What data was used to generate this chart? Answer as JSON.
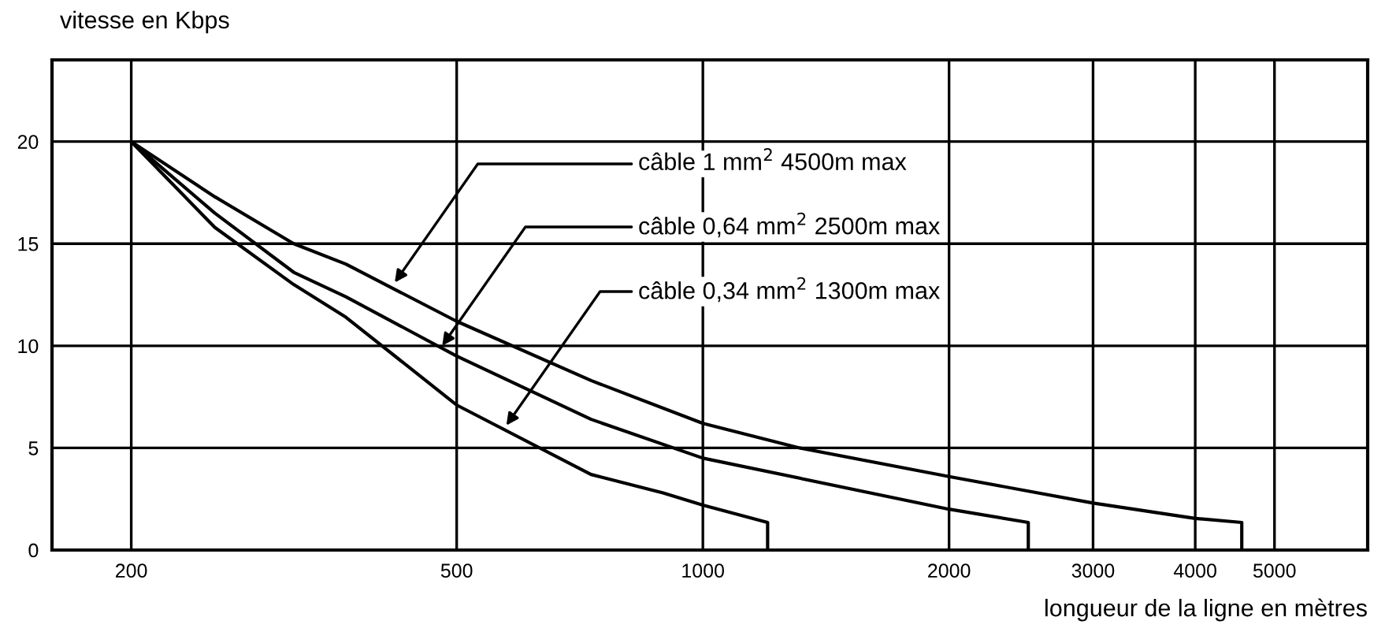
{
  "chart_data": {
    "type": "line",
    "xlabel": "longueur de la ligne en mètres",
    "ylabel": "vitesse en Kbps",
    "log": "x",
    "xlim": [
      160,
      6500
    ],
    "xticks": [
      200,
      500,
      1000,
      2000,
      3000,
      4000,
      5000
    ],
    "ylim": [
      0,
      24
    ],
    "yticks": [
      0,
      5,
      10,
      15,
      20
    ],
    "grid": true,
    "marker": "none",
    "line_style": "solid",
    "series": [
      {
        "color": "#000000",
        "x": [
          200,
          253,
          316,
          366,
          500,
          730,
          1000,
          1313,
          2000,
          3000,
          4000,
          4560,
          4560
        ],
        "values": [
          20,
          17.3,
          15,
          14.0,
          11.2,
          8.3,
          6.2,
          5,
          3.6,
          2.3,
          1.55,
          1.35,
          0
        ]
      },
      {
        "color": "#000000",
        "x": [
          200,
          253,
          316,
          366,
          500,
          730,
          1000,
          2000,
          2500,
          2500
        ],
        "values": [
          20,
          16.5,
          13.6,
          12.4,
          9.5,
          6.4,
          4.5,
          2.0,
          1.35,
          0
        ]
      },
      {
        "color": "#000000",
        "x": [
          200,
          253,
          316,
          366,
          500,
          730,
          894,
          1000,
          1200,
          1200
        ],
        "values": [
          20,
          15.8,
          13.0,
          11.4,
          7.1,
          3.7,
          2.8,
          2.2,
          1.35,
          0
        ]
      }
    ],
    "annotations": [
      {
        "text": "câble 1 mm$^{2}$ 4500m max",
        "x": 420,
        "y": 13.1
      },
      {
        "text": "câble 0,64 mm$^{2}$ 2500m max",
        "x": 480,
        "y": 10
      },
      {
        "text": "câble 0,34 mm$^{2}$ 1300m max",
        "x": 575,
        "y": 6.1
      }
    ]
  }
}
